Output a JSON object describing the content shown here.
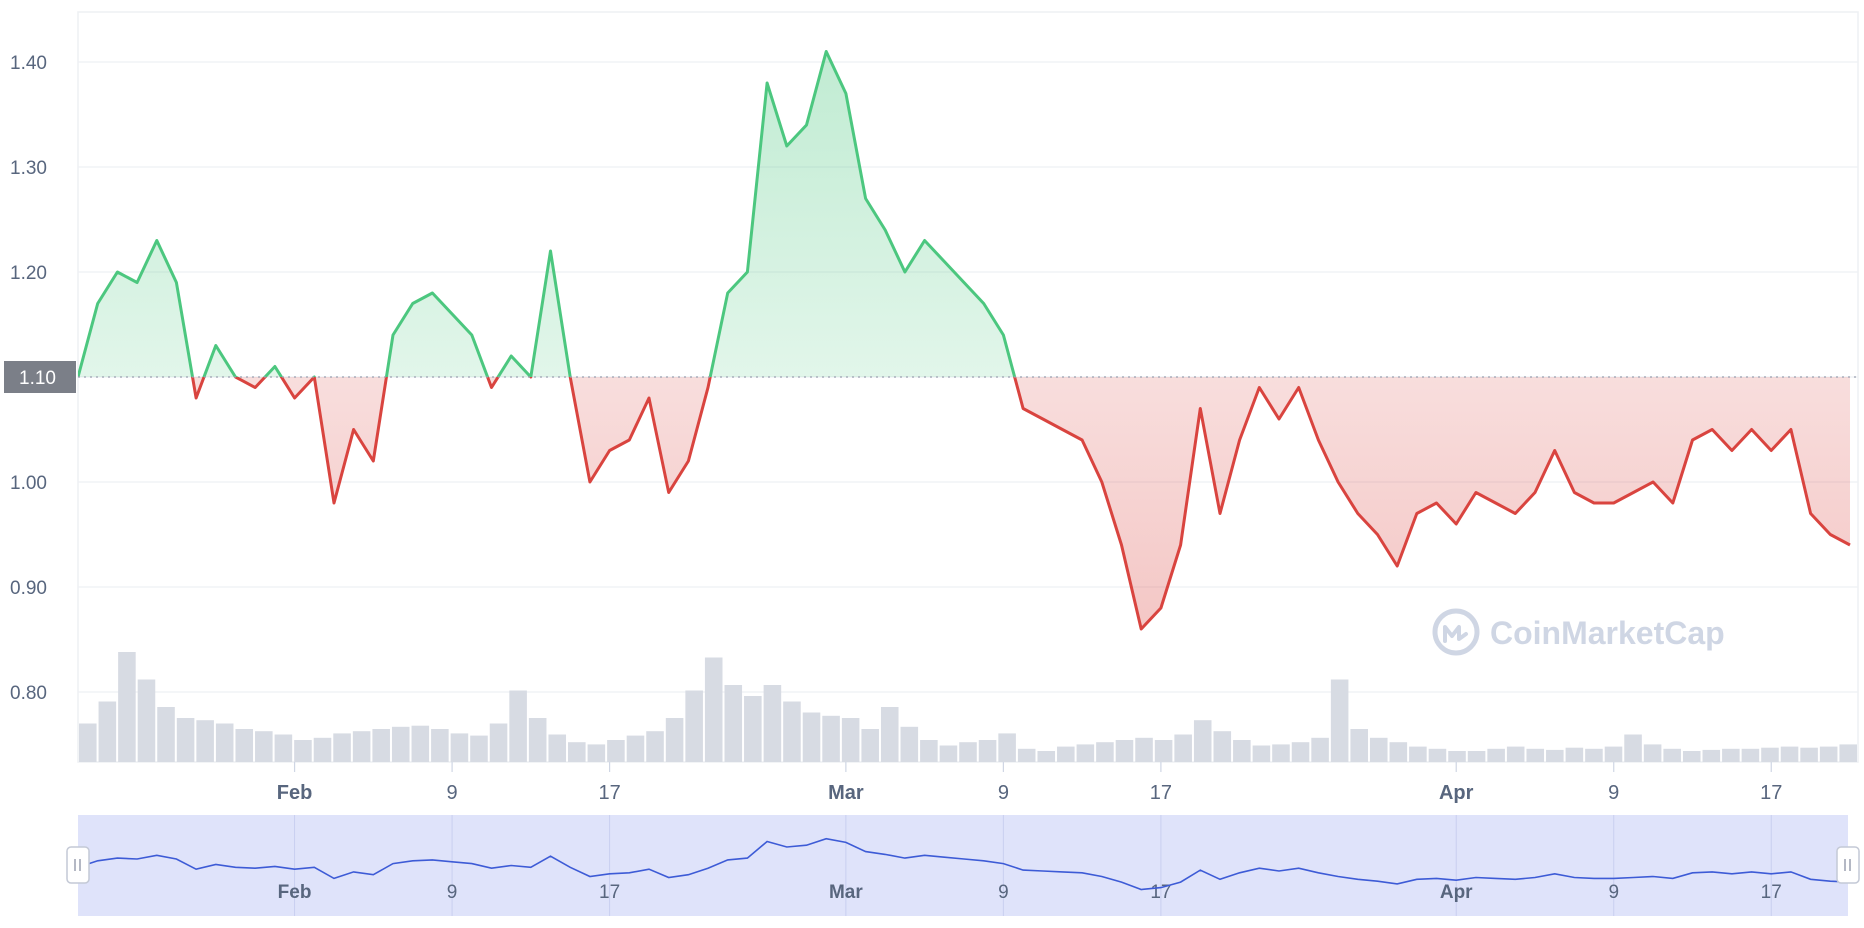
{
  "watermark": {
    "text": "CoinMarketCap"
  },
  "reference_label": "1.10",
  "colors": {
    "up": "#4cc77f",
    "down": "#d9443f",
    "volume": "#d7dbe3",
    "navigator_line": "#3d5bd6",
    "navigator_fill": "#dfe3fa",
    "badge": "#7b7f88"
  },
  "chart_data": {
    "type": "area",
    "title": "",
    "xlabel": "",
    "ylabel": "",
    "ylim": [
      0.74,
      1.44
    ],
    "y_ticks": [
      "0.80",
      "0.90",
      "1.00",
      "1.10",
      "1.20",
      "1.30",
      "1.40"
    ],
    "x_ticks": [
      {
        "label": "Feb",
        "date": "2025-02-01",
        "major": true
      },
      {
        "label": "9",
        "date": "2025-02-09",
        "major": false
      },
      {
        "label": "17",
        "date": "2025-02-17",
        "major": false
      },
      {
        "label": "Mar",
        "date": "2025-03-01",
        "major": true
      },
      {
        "label": "9",
        "date": "2025-03-09",
        "major": false
      },
      {
        "label": "17",
        "date": "2025-03-17",
        "major": false
      },
      {
        "label": "Apr",
        "date": "2025-04-01",
        "major": true
      },
      {
        "label": "9",
        "date": "2025-04-09",
        "major": false
      },
      {
        "label": "17",
        "date": "2025-04-17",
        "major": false
      }
    ],
    "reference_value": 1.1,
    "x_range": [
      "2025-01-21",
      "2025-04-21"
    ],
    "grid": true,
    "legend": "none",
    "series": [
      {
        "values": [
          [
            "2025-01-21",
            1.1
          ],
          [
            "2025-01-22",
            1.17
          ],
          [
            "2025-01-23",
            1.2
          ],
          [
            "2025-01-24",
            1.19
          ],
          [
            "2025-01-25",
            1.23
          ],
          [
            "2025-01-26",
            1.19
          ],
          [
            "2025-01-27",
            1.08
          ],
          [
            "2025-01-28",
            1.13
          ],
          [
            "2025-01-29",
            1.1
          ],
          [
            "2025-01-30",
            1.09
          ],
          [
            "2025-01-31",
            1.11
          ],
          [
            "2025-02-01",
            1.08
          ],
          [
            "2025-02-02",
            1.1
          ],
          [
            "2025-02-03",
            0.98
          ],
          [
            "2025-02-04",
            1.05
          ],
          [
            "2025-02-05",
            1.02
          ],
          [
            "2025-02-06",
            1.14
          ],
          [
            "2025-02-07",
            1.17
          ],
          [
            "2025-02-08",
            1.18
          ],
          [
            "2025-02-09",
            1.16
          ],
          [
            "2025-02-10",
            1.14
          ],
          [
            "2025-02-11",
            1.09
          ],
          [
            "2025-02-12",
            1.12
          ],
          [
            "2025-02-13",
            1.1
          ],
          [
            "2025-02-14",
            1.22
          ],
          [
            "2025-02-15",
            1.1
          ],
          [
            "2025-02-16",
            1.0
          ],
          [
            "2025-02-17",
            1.03
          ],
          [
            "2025-02-18",
            1.04
          ],
          [
            "2025-02-19",
            1.08
          ],
          [
            "2025-02-20",
            0.99
          ],
          [
            "2025-02-21",
            1.02
          ],
          [
            "2025-02-22",
            1.09
          ],
          [
            "2025-02-23",
            1.18
          ],
          [
            "2025-02-24",
            1.2
          ],
          [
            "2025-02-25",
            1.38
          ],
          [
            "2025-02-26",
            1.32
          ],
          [
            "2025-02-27",
            1.34
          ],
          [
            "2025-02-28",
            1.41
          ],
          [
            "2025-03-01",
            1.37
          ],
          [
            "2025-03-02",
            1.27
          ],
          [
            "2025-03-03",
            1.24
          ],
          [
            "2025-03-04",
            1.2
          ],
          [
            "2025-03-05",
            1.23
          ],
          [
            "2025-03-06",
            1.21
          ],
          [
            "2025-03-07",
            1.19
          ],
          [
            "2025-03-08",
            1.17
          ],
          [
            "2025-03-09",
            1.14
          ],
          [
            "2025-03-10",
            1.07
          ],
          [
            "2025-03-11",
            1.06
          ],
          [
            "2025-03-12",
            1.05
          ],
          [
            "2025-03-13",
            1.04
          ],
          [
            "2025-03-14",
            1.0
          ],
          [
            "2025-03-15",
            0.94
          ],
          [
            "2025-03-16",
            0.86
          ],
          [
            "2025-03-17",
            0.88
          ],
          [
            "2025-03-18",
            0.94
          ],
          [
            "2025-03-19",
            1.07
          ],
          [
            "2025-03-20",
            0.97
          ],
          [
            "2025-03-21",
            1.04
          ],
          [
            "2025-03-22",
            1.09
          ],
          [
            "2025-03-23",
            1.06
          ],
          [
            "2025-03-24",
            1.09
          ],
          [
            "2025-03-25",
            1.04
          ],
          [
            "2025-03-26",
            1.0
          ],
          [
            "2025-03-27",
            0.97
          ],
          [
            "2025-03-28",
            0.95
          ],
          [
            "2025-03-29",
            0.92
          ],
          [
            "2025-03-30",
            0.97
          ],
          [
            "2025-03-31",
            0.98
          ],
          [
            "2025-04-01",
            0.96
          ],
          [
            "2025-04-02",
            0.99
          ],
          [
            "2025-04-03",
            0.98
          ],
          [
            "2025-04-04",
            0.97
          ],
          [
            "2025-04-05",
            0.99
          ],
          [
            "2025-04-06",
            1.03
          ],
          [
            "2025-04-07",
            0.99
          ],
          [
            "2025-04-08",
            0.98
          ],
          [
            "2025-04-09",
            0.98
          ],
          [
            "2025-04-10",
            0.99
          ],
          [
            "2025-04-11",
            1.0
          ],
          [
            "2025-04-12",
            0.98
          ],
          [
            "2025-04-13",
            1.04
          ],
          [
            "2025-04-14",
            1.05
          ],
          [
            "2025-04-15",
            1.03
          ],
          [
            "2025-04-16",
            1.05
          ],
          [
            "2025-04-17",
            1.03
          ],
          [
            "2025-04-18",
            1.05
          ],
          [
            "2025-04-19",
            0.97
          ],
          [
            "2025-04-20",
            0.95
          ],
          [
            "2025-04-21",
            0.94
          ]
        ]
      }
    ],
    "volume_relative": [
      0.35,
      0.55,
      1.0,
      0.75,
      0.5,
      0.4,
      0.38,
      0.35,
      0.3,
      0.28,
      0.25,
      0.2,
      0.22,
      0.26,
      0.28,
      0.3,
      0.32,
      0.33,
      0.3,
      0.26,
      0.24,
      0.35,
      0.65,
      0.4,
      0.25,
      0.18,
      0.16,
      0.2,
      0.24,
      0.28,
      0.4,
      0.65,
      0.95,
      0.7,
      0.6,
      0.7,
      0.55,
      0.45,
      0.42,
      0.4,
      0.3,
      0.5,
      0.32,
      0.2,
      0.15,
      0.18,
      0.2,
      0.26,
      0.12,
      0.1,
      0.14,
      0.16,
      0.18,
      0.2,
      0.22,
      0.2,
      0.25,
      0.38,
      0.28,
      0.2,
      0.15,
      0.16,
      0.18,
      0.22,
      0.75,
      0.3,
      0.22,
      0.18,
      0.14,
      0.12,
      0.1,
      0.1,
      0.12,
      0.14,
      0.12,
      0.11,
      0.13,
      0.12,
      0.14,
      0.25,
      0.16,
      0.12,
      0.1,
      0.11,
      0.12,
      0.12,
      0.13,
      0.14,
      0.13,
      0.14,
      0.16
    ]
  }
}
